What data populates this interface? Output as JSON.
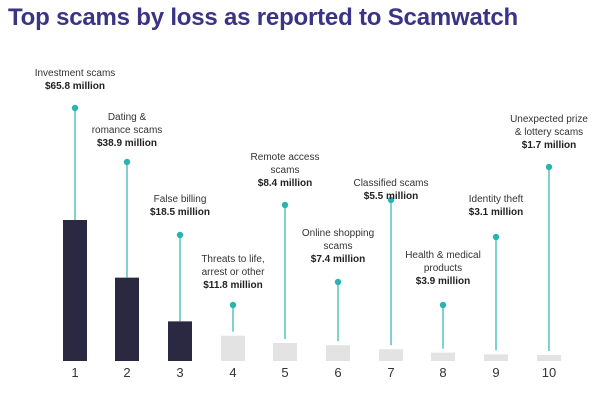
{
  "chart_data": {
    "type": "bar",
    "title": "Top scams by loss as reported to Scamwatch",
    "xlabel": "",
    "ylabel": "",
    "categories": [
      "1",
      "2",
      "3",
      "4",
      "5",
      "6",
      "7",
      "8",
      "9",
      "10"
    ],
    "series": [
      {
        "values": [
          65.8,
          38.9,
          18.5,
          11.8,
          8.4,
          7.4,
          5.5,
          3.9,
          3.1,
          1.7
        ]
      }
    ],
    "labels": [
      {
        "lines": [
          "Investment scams"
        ],
        "value": "$65.8 million"
      },
      {
        "lines": [
          "Dating &",
          "romance scams"
        ],
        "value": "$38.9 million"
      },
      {
        "lines": [
          "False billing"
        ],
        "value": "$18.5 million"
      },
      {
        "lines": [
          "Threats to life,",
          "arrest or other"
        ],
        "value": "$11.8 million"
      },
      {
        "lines": [
          "Remote access",
          "scams"
        ],
        "value": "$8.4 million"
      },
      {
        "lines": [
          "Online shopping",
          "scams"
        ],
        "value": "$7.4 million"
      },
      {
        "lines": [
          "Classified scams"
        ],
        "value": "$5.5 million"
      },
      {
        "lines": [
          "Health & medical",
          "products"
        ],
        "value": "$3.9 million"
      },
      {
        "lines": [
          "Identity theft"
        ],
        "value": "$3.1 million"
      },
      {
        "lines": [
          "Unexpected prize",
          "& lottery scams"
        ],
        "value": "$1.7 million"
      }
    ],
    "grid": false,
    "legend": "none",
    "colors": {
      "top_bars": "#2b2942",
      "other_bars": "#e3e3e3",
      "connector": "#2bb3b1",
      "title": "#3a3484"
    }
  }
}
